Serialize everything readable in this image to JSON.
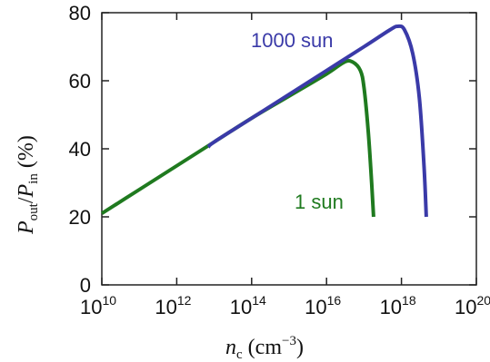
{
  "chart_data": {
    "type": "line",
    "xscale": "log",
    "xlim": [
      10000000000.0,
      1e+20
    ],
    "ylim": [
      0,
      80
    ],
    "grid": false,
    "xlabel": {
      "var": "n",
      "sub": "c",
      "unit_open": " (cm",
      "unit_exp": "−3",
      "unit_close": ")"
    },
    "ylabel": {
      "num_var": "P",
      "num_sub": "out",
      "slash": "/",
      "den_var": "P",
      "den_sub": "in",
      "unit": " (%)"
    },
    "x_ticks": [
      {
        "value": 10000000000.0,
        "base": "10",
        "exp": "10"
      },
      {
        "value": 1000000000000.0,
        "base": "10",
        "exp": "12"
      },
      {
        "value": 100000000000000.0,
        "base": "10",
        "exp": "14"
      },
      {
        "value": 1e+16,
        "base": "10",
        "exp": "16"
      },
      {
        "value": 1e+18,
        "base": "10",
        "exp": "18"
      },
      {
        "value": 1e+20,
        "base": "10",
        "exp": "20"
      }
    ],
    "y_ticks": [
      {
        "value": 0,
        "label": "0"
      },
      {
        "value": 20,
        "label": "20"
      },
      {
        "value": 40,
        "label": "40"
      },
      {
        "value": 60,
        "label": "60"
      },
      {
        "value": 80,
        "label": "80"
      }
    ],
    "series": [
      {
        "name": "1 sun",
        "color": "#1f7a1f",
        "points": [
          [
            10000000000.0,
            21
          ],
          [
            100000000000.0,
            28
          ],
          [
            1000000000000.0,
            35
          ],
          [
            10000000000000.0,
            42
          ],
          [
            100000000000000.0,
            49
          ],
          [
            1000000000000000.0,
            55.5
          ],
          [
            1e+16,
            62
          ],
          [
            3e+16,
            65.5
          ],
          [
            5e+16,
            65.5
          ],
          [
            8e+16,
            63
          ],
          [
            1e+17,
            58
          ],
          [
            1.3e+17,
            45
          ],
          [
            1.6e+17,
            30
          ],
          [
            1.8e+17,
            20
          ]
        ]
      },
      {
        "name": "1000 sun",
        "color": "#3a3aa8",
        "points": [
          [
            7000000000000.0,
            40.5
          ],
          [
            10000000000000.0,
            42
          ],
          [
            100000000000000.0,
            49
          ],
          [
            1000000000000000.0,
            56
          ],
          [
            1e+16,
            63
          ],
          [
            1e+17,
            70
          ],
          [
            5e+17,
            75
          ],
          [
            8e+17,
            76
          ],
          [
            1.2e+18,
            75
          ],
          [
            2e+18,
            68
          ],
          [
            3e+18,
            55
          ],
          [
            4e+18,
            35
          ],
          [
            4.6e+18,
            20
          ]
        ]
      }
    ],
    "series_labels": [
      {
        "text": "1000 sun",
        "color": "#3a3aa8",
        "anchor": "upper"
      },
      {
        "text": "1 sun",
        "color": "#1f7a1f",
        "anchor": "lower"
      }
    ]
  }
}
